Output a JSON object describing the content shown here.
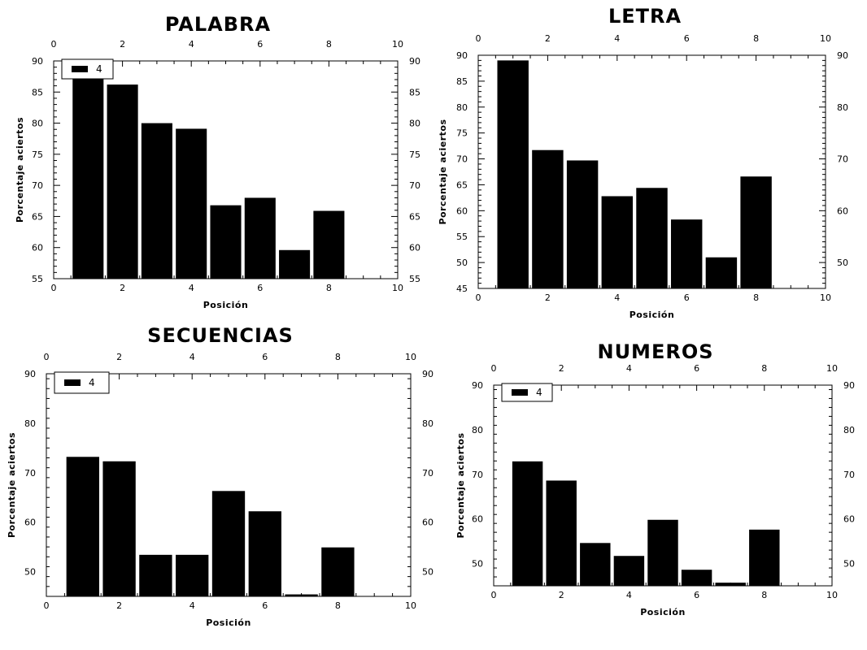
{
  "chart_data": [
    {
      "type": "bar",
      "title": "PALABRA",
      "xlabel": "Posición",
      "ylabel": "Porcentaje aciertos",
      "x": [
        1,
        2,
        3,
        4,
        5,
        6,
        7,
        8
      ],
      "series": [
        {
          "name": "4",
          "values": [
            87.5,
            86.2,
            80.0,
            79.1,
            66.8,
            68.0,
            59.6,
            65.9
          ]
        }
      ],
      "xlim": [
        0,
        10
      ],
      "ylim": [
        55,
        90
      ],
      "xticks": [
        0,
        2,
        4,
        6,
        8,
        10
      ],
      "yticks": [
        55,
        60,
        65,
        70,
        75,
        80,
        85,
        90
      ],
      "legend": "top-left",
      "grid": false
    },
    {
      "type": "bar",
      "title": "LETRA",
      "xlabel": "Posición",
      "ylabel": "Porcentaje aciertos",
      "x": [
        1,
        2,
        3,
        4,
        5,
        6,
        7,
        8
      ],
      "series": [
        {
          "name": "4",
          "values": [
            89.0,
            71.7,
            69.7,
            62.8,
            64.4,
            58.3,
            51.0,
            66.6
          ]
        }
      ],
      "xlim": [
        0,
        10
      ],
      "ylim": [
        45,
        90
      ],
      "xticks": [
        0,
        2,
        4,
        6,
        8,
        10
      ],
      "yticks_left": [
        45,
        50,
        55,
        60,
        65,
        70,
        75,
        80,
        85,
        90
      ],
      "yticks_right": [
        50,
        60,
        70,
        80,
        90
      ],
      "legend": "none",
      "grid": false
    },
    {
      "type": "bar",
      "title": "SECUENCIAS",
      "xlabel": "Posición",
      "ylabel": "Porcentaje aciertos",
      "x": [
        1,
        2,
        3,
        4,
        5,
        6,
        7,
        8
      ],
      "series": [
        {
          "name": "4",
          "values": [
            73.2,
            72.3,
            53.4,
            53.4,
            66.3,
            62.2,
            45.4,
            54.9
          ]
        }
      ],
      "xlim": [
        0,
        10
      ],
      "ylim": [
        45,
        90
      ],
      "xticks": [
        0,
        2,
        4,
        6,
        8,
        10
      ],
      "yticks": [
        50,
        60,
        70,
        80,
        90
      ],
      "legend": "top-left",
      "grid": false
    },
    {
      "type": "bar",
      "title": "NUMEROS",
      "xlabel": "Posición",
      "ylabel": "Porcentaje aciertos",
      "x": [
        1,
        2,
        3,
        4,
        5,
        6,
        7,
        8
      ],
      "series": [
        {
          "name": "4",
          "values": [
            72.9,
            68.6,
            54.6,
            51.7,
            59.8,
            48.6,
            45.7,
            57.6
          ]
        }
      ],
      "xlim": [
        0,
        10
      ],
      "ylim": [
        45,
        90
      ],
      "xticks": [
        0,
        2,
        4,
        6,
        8,
        10
      ],
      "yticks": [
        50,
        60,
        70,
        80,
        90
      ],
      "legend": "top-left",
      "grid": false
    }
  ]
}
